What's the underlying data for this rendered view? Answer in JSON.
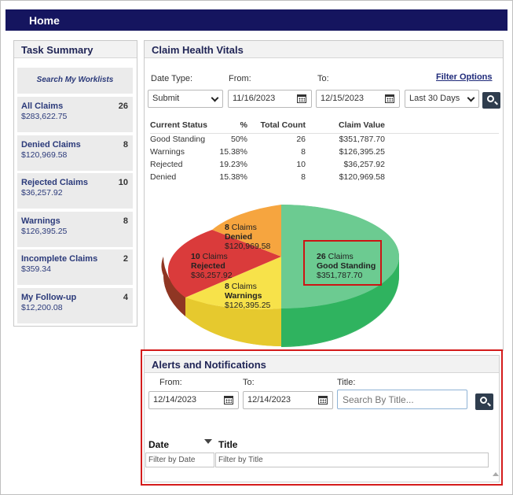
{
  "header": {
    "title": "Home"
  },
  "task_summary": {
    "title": "Task Summary",
    "search_label": "Search My Worklists",
    "items": [
      {
        "name": "All Claims",
        "count": "26",
        "amount": "$283,622.75"
      },
      {
        "name": "Denied Claims",
        "count": "8",
        "amount": "$120,969.58"
      },
      {
        "name": "Rejected Claims",
        "count": "10",
        "amount": "$36,257.92"
      },
      {
        "name": "Warnings",
        "count": "8",
        "amount": "$126,395.25"
      },
      {
        "name": "Incomplete Claims",
        "count": "2",
        "amount": "$359.34"
      },
      {
        "name": "My Follow-up",
        "count": "4",
        "amount": "$12,200.08"
      }
    ]
  },
  "claim_health": {
    "title": "Claim Health Vitals",
    "date_type_label": "Date Type:",
    "date_type_value": "Submit",
    "from_label": "From:",
    "from_value": "11/16/2023",
    "to_label": "To:",
    "to_value": "12/15/2023",
    "range_value": "Last 30 Days",
    "filter_options_label": "Filter Options",
    "table": {
      "headers": [
        "Current Status",
        "%",
        "Total Count",
        "Claim Value"
      ],
      "rows": [
        [
          "Good Standing",
          "50%",
          "26",
          "$351,787.70"
        ],
        [
          "Warnings",
          "15.38%",
          "8",
          "$126,395.25"
        ],
        [
          "Rejected",
          "19.23%",
          "10",
          "$36,257.92"
        ],
        [
          "Denied",
          "15.38%",
          "8",
          "$120,969.58"
        ]
      ]
    },
    "pie": {
      "colors": {
        "good": "#6ccb91",
        "good_side": "#2fb35f",
        "warn": "#f7e24a",
        "warn_side": "#e6c92e",
        "rej": "#da3b3b",
        "rej_side": "#8f3623",
        "den": "#f6a53f",
        "den_side": "#c77f22"
      },
      "labels": {
        "denied": {
          "count": "8",
          "unit": "Claims",
          "status": "Denied",
          "amount": "$120,969.58"
        },
        "rejected": {
          "count": "10",
          "unit": "Claims",
          "status": "Rejected",
          "amount": "$36,257.92"
        },
        "warnings": {
          "count": "8",
          "unit": "Claims",
          "status": "Warnings",
          "amount": "$126,395.25"
        },
        "good": {
          "count": "26",
          "unit": "Claims",
          "status": "Good Standing",
          "amount": "$351,787.70"
        }
      }
    }
  },
  "alerts": {
    "title": "Alerts and Notifications",
    "from_label": "From:",
    "from_value": "12/14/2023",
    "to_label": "To:",
    "to_value": "12/14/2023",
    "title_label": "Title:",
    "search_placeholder": "Search By Title...",
    "col_date": "Date",
    "col_title": "Title",
    "filter_date_placeholder": "Filter by Date",
    "filter_title_placeholder": "Filter by Title"
  }
}
